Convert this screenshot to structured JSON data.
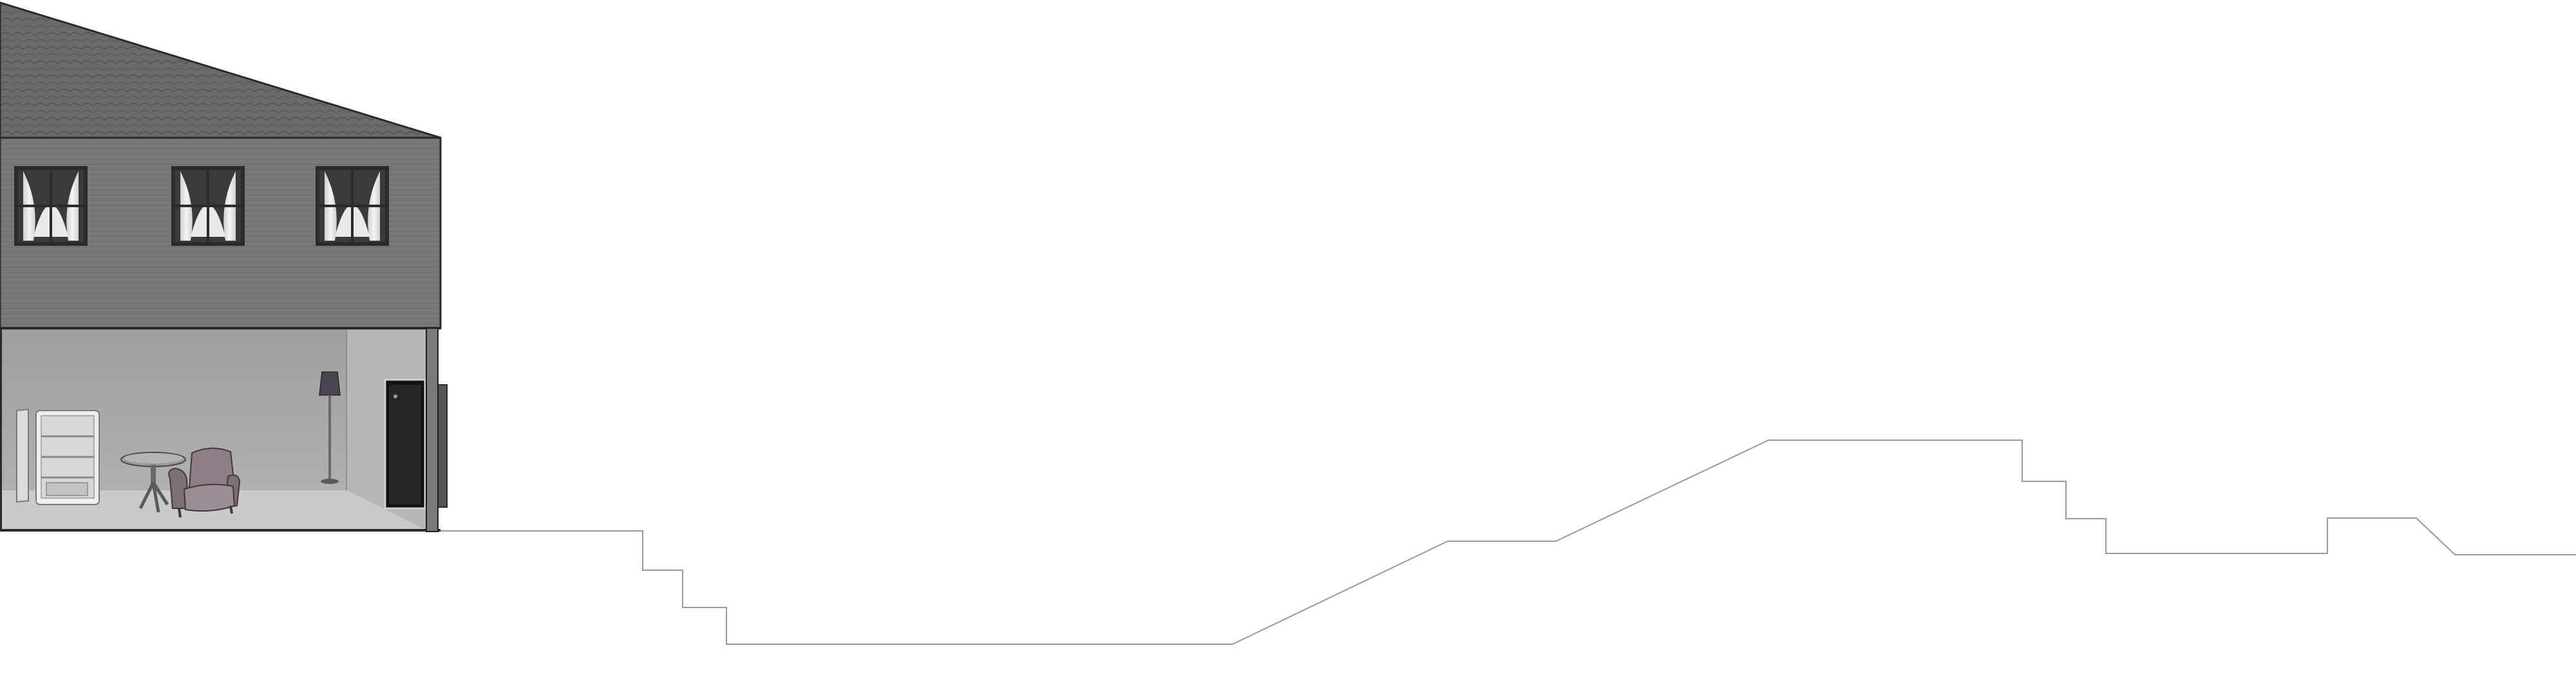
{
  "scene": {
    "background": "#ffffff",
    "colors": {
      "roof": "#6b6b6b",
      "roof_shingle_line": "#5a5a5a",
      "upper_wall": "#767676",
      "siding_line": "#6a6a6a",
      "interior_back_wall": "#a7a7a7",
      "interior_side_wall": "#b4b4b4",
      "floor": "#c9c9c9",
      "door": "#1f1f1f",
      "window_frame": "#2b2b2b",
      "curtain": "#e6e6e6",
      "terrain_line": "#9a9a9a",
      "outline": "#1a1a1a"
    },
    "objects": [
      {
        "name": "roof",
        "icon": "shingled-roof"
      },
      {
        "name": "window-1",
        "icon": "curtained-window"
      },
      {
        "name": "window-2",
        "icon": "curtained-window"
      },
      {
        "name": "window-3",
        "icon": "curtained-window"
      },
      {
        "name": "fridge",
        "icon": "open-fridge-icon"
      },
      {
        "name": "table",
        "icon": "round-table-icon"
      },
      {
        "name": "armchair",
        "icon": "armchair-icon"
      },
      {
        "name": "floor-lamp",
        "icon": "floor-lamp-icon"
      },
      {
        "name": "front-door",
        "icon": "open-door-icon"
      },
      {
        "name": "terrain",
        "icon": "ground-outline"
      }
    ]
  }
}
